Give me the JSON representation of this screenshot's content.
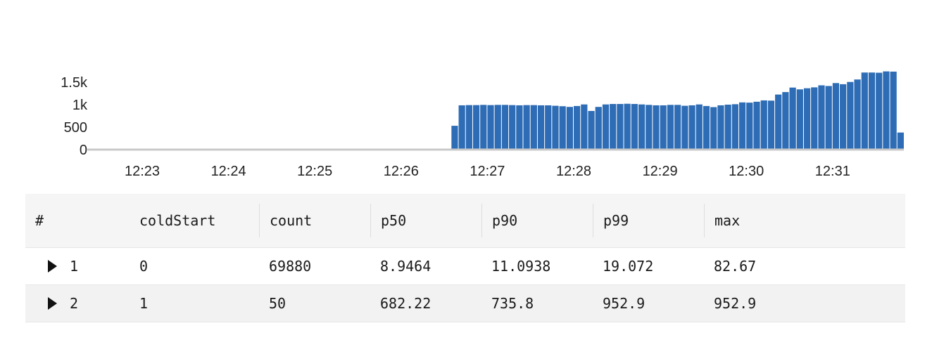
{
  "chart_data": {
    "type": "bar",
    "x_ticks": [
      "12:23",
      "12:24",
      "12:25",
      "12:26",
      "12:27",
      "12:28",
      "12:29",
      "12:30",
      "12:31"
    ],
    "y_ticks": [
      "0",
      "500",
      "1k",
      "1.5k"
    ],
    "ylim": [
      0,
      1850
    ],
    "series_color": "#2e6db5",
    "bars": [
      530,
      985,
      990,
      990,
      995,
      990,
      995,
      995,
      990,
      985,
      990,
      990,
      985,
      985,
      975,
      965,
      950,
      970,
      1005,
      860,
      950,
      1005,
      1015,
      1015,
      1020,
      1015,
      1005,
      995,
      985,
      985,
      995,
      995,
      975,
      985,
      1005,
      970,
      945,
      985,
      1000,
      1010,
      1050,
      1045,
      1065,
      1095,
      1090,
      1225,
      1280,
      1380,
      1340,
      1365,
      1385,
      1430,
      1415,
      1480,
      1455,
      1505,
      1560,
      1715,
      1715,
      1710,
      1740,
      1735,
      380
    ],
    "first_bar_time": "12:26:35",
    "bar_interval_seconds": 5
  },
  "table": {
    "columns": [
      "#",
      "coldStart",
      "count",
      "p50",
      "p90",
      "p99",
      "max"
    ],
    "rows": [
      {
        "index": "1",
        "values": [
          "0",
          "69880",
          "8.9464",
          "11.0938",
          "19.072",
          "82.67"
        ]
      },
      {
        "index": "2",
        "values": [
          "1",
          "50",
          "682.22",
          "735.8",
          "952.9",
          "952.9"
        ]
      }
    ]
  }
}
